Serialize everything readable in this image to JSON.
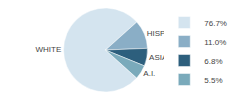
{
  "chart_data": {
    "type": "pie",
    "categories": [
      "WHITE",
      "HISPANIC",
      "ASIAN",
      "A.I."
    ],
    "values": [
      76.7,
      11.0,
      6.8,
      5.5
    ],
    "value_labels": [
      "76.7%",
      "11.0%",
      "6.8%",
      "5.5%"
    ],
    "colors": [
      "#d4e4ef",
      "#8aaec6",
      "#2d5f7d",
      "#7aaabb"
    ],
    "legend": "right"
  }
}
